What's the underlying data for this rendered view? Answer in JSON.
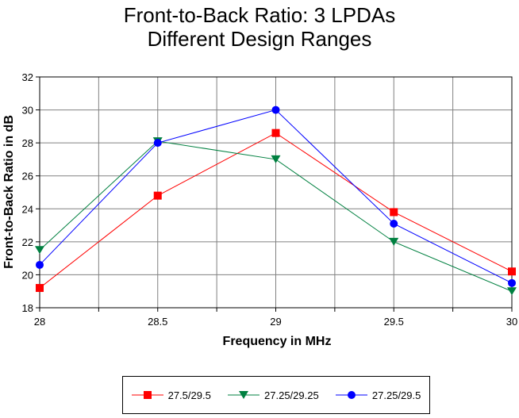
{
  "chart_data": {
    "type": "line",
    "title": [
      "Front-to-Back Ratio: 3 LPDAs",
      "Different Design Ranges"
    ],
    "xlabel": "Frequency in MHz",
    "ylabel": "Front-to-Back Ratio in dB",
    "x": [
      28,
      28.5,
      29,
      29.5,
      30
    ],
    "x_ticks": [
      "28",
      "28.5",
      "29",
      "29.5",
      "30"
    ],
    "xlim": [
      28,
      30
    ],
    "ylim": [
      18,
      32
    ],
    "y_ticks": [
      "18",
      "20",
      "22",
      "24",
      "26",
      "28",
      "30",
      "32"
    ],
    "grid": true,
    "legend_position": "bottom",
    "series": [
      {
        "name": "27.5/29.5",
        "color": "#ff0000",
        "marker": "square",
        "values": [
          19.2,
          24.8,
          28.6,
          23.8,
          20.2
        ]
      },
      {
        "name": "27.25/29.25",
        "color": "#008040",
        "marker": "triangle-down",
        "values": [
          21.5,
          28.1,
          27.0,
          22.0,
          19.0
        ]
      },
      {
        "name": "27.25/29.5",
        "color": "#0000ff",
        "marker": "circle",
        "values": [
          20.6,
          28.0,
          30.0,
          23.1,
          19.5
        ]
      }
    ]
  }
}
